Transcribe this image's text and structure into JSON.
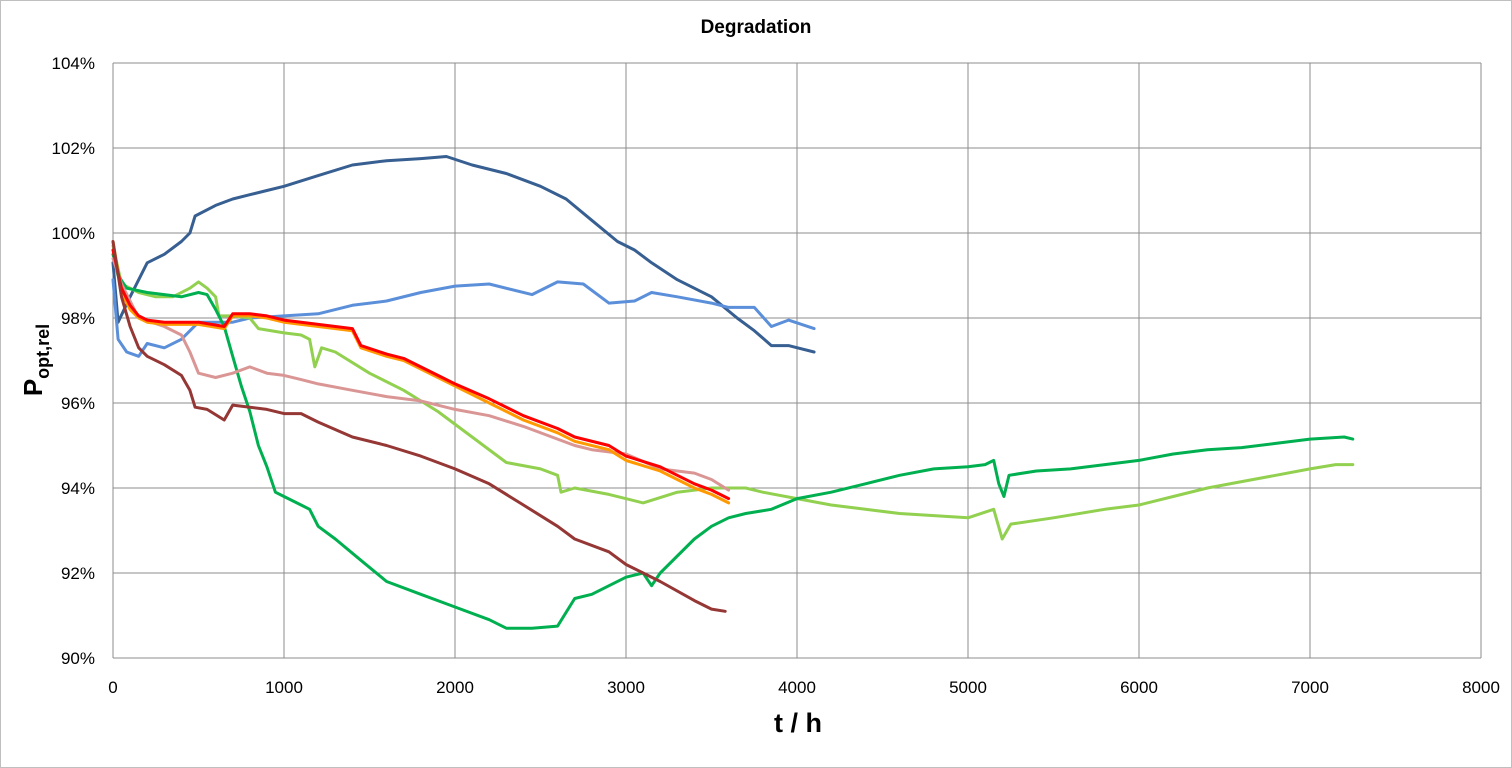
{
  "chart_data": {
    "type": "line",
    "title": "Degradation",
    "xlabel": "t / h",
    "ylabel_main": "P",
    "ylabel_sub": "opt,rel",
    "xlim": [
      0,
      8000
    ],
    "ylim": [
      90,
      104
    ],
    "x_ticks": [
      0,
      1000,
      2000,
      3000,
      4000,
      5000,
      6000,
      7000,
      8000
    ],
    "x_tick_labels": [
      "0",
      "1000",
      "2000",
      "3000",
      "4000",
      "5000",
      "6000",
      "7000",
      "8000"
    ],
    "y_ticks": [
      90,
      92,
      94,
      96,
      98,
      100,
      102,
      104
    ],
    "y_tick_labels": [
      "90%",
      "92%",
      "94%",
      "96%",
      "98%",
      "100%",
      "102%",
      "104%"
    ],
    "grid": true,
    "legend": "none",
    "series": [
      {
        "color": "#375f91",
        "points": [
          [
            0,
            99.3
          ],
          [
            30,
            97.9
          ],
          [
            100,
            98.5
          ],
          [
            200,
            99.3
          ],
          [
            300,
            99.5
          ],
          [
            400,
            99.8
          ],
          [
            450,
            100.0
          ],
          [
            480,
            100.4
          ],
          [
            600,
            100.65
          ],
          [
            700,
            100.8
          ],
          [
            800,
            100.9
          ],
          [
            900,
            101.0
          ],
          [
            1000,
            101.1
          ],
          [
            1200,
            101.35
          ],
          [
            1400,
            101.6
          ],
          [
            1600,
            101.7
          ],
          [
            1800,
            101.75
          ],
          [
            1950,
            101.8
          ],
          [
            2100,
            101.6
          ],
          [
            2300,
            101.4
          ],
          [
            2500,
            101.1
          ],
          [
            2650,
            100.8
          ],
          [
            2800,
            100.3
          ],
          [
            2950,
            99.8
          ],
          [
            3050,
            99.6
          ],
          [
            3150,
            99.3
          ],
          [
            3300,
            98.9
          ],
          [
            3500,
            98.5
          ],
          [
            3650,
            98.0
          ],
          [
            3750,
            97.7
          ],
          [
            3850,
            97.35
          ],
          [
            3950,
            97.35
          ],
          [
            4100,
            97.2
          ]
        ]
      },
      {
        "color": "#5b8fd9",
        "points": [
          [
            0,
            98.9
          ],
          [
            30,
            97.5
          ],
          [
            80,
            97.2
          ],
          [
            150,
            97.1
          ],
          [
            200,
            97.4
          ],
          [
            300,
            97.3
          ],
          [
            400,
            97.5
          ],
          [
            500,
            97.9
          ],
          [
            700,
            97.9
          ],
          [
            800,
            98.0
          ],
          [
            1000,
            98.05
          ],
          [
            1200,
            98.1
          ],
          [
            1400,
            98.3
          ],
          [
            1600,
            98.4
          ],
          [
            1800,
            98.6
          ],
          [
            2000,
            98.75
          ],
          [
            2200,
            98.8
          ],
          [
            2450,
            98.55
          ],
          [
            2600,
            98.85
          ],
          [
            2750,
            98.8
          ],
          [
            2900,
            98.35
          ],
          [
            3050,
            98.4
          ],
          [
            3150,
            98.6
          ],
          [
            3300,
            98.5
          ],
          [
            3500,
            98.35
          ],
          [
            3600,
            98.25
          ],
          [
            3750,
            98.25
          ],
          [
            3850,
            97.8
          ],
          [
            3950,
            97.95
          ],
          [
            4100,
            97.75
          ]
        ]
      },
      {
        "color": "#92d050",
        "points": [
          [
            0,
            99.7
          ],
          [
            50,
            98.8
          ],
          [
            150,
            98.6
          ],
          [
            250,
            98.5
          ],
          [
            350,
            98.5
          ],
          [
            450,
            98.7
          ],
          [
            500,
            98.85
          ],
          [
            550,
            98.7
          ],
          [
            600,
            98.5
          ],
          [
            620,
            98.05
          ],
          [
            700,
            98.05
          ],
          [
            800,
            98.0
          ],
          [
            850,
            97.75
          ],
          [
            1000,
            97.65
          ],
          [
            1100,
            97.6
          ],
          [
            1150,
            97.5
          ],
          [
            1180,
            96.85
          ],
          [
            1220,
            97.3
          ],
          [
            1300,
            97.2
          ],
          [
            1500,
            96.7
          ],
          [
            1700,
            96.3
          ],
          [
            1900,
            95.8
          ],
          [
            2100,
            95.2
          ],
          [
            2300,
            94.6
          ],
          [
            2500,
            94.45
          ],
          [
            2600,
            94.3
          ],
          [
            2620,
            93.9
          ],
          [
            2700,
            94.0
          ],
          [
            2900,
            93.85
          ],
          [
            3100,
            93.65
          ],
          [
            3300,
            93.9
          ],
          [
            3500,
            94.0
          ],
          [
            3700,
            94.0
          ],
          [
            3800,
            93.9
          ],
          [
            4000,
            93.75
          ],
          [
            4200,
            93.6
          ],
          [
            4400,
            93.5
          ],
          [
            4600,
            93.4
          ],
          [
            4800,
            93.35
          ],
          [
            5000,
            93.3
          ],
          [
            5150,
            93.5
          ],
          [
            5200,
            92.8
          ],
          [
            5250,
            93.15
          ],
          [
            5500,
            93.3
          ],
          [
            5800,
            93.5
          ],
          [
            6000,
            93.6
          ],
          [
            6200,
            93.8
          ],
          [
            6400,
            94.0
          ],
          [
            6600,
            94.15
          ],
          [
            6800,
            94.3
          ],
          [
            7000,
            94.45
          ],
          [
            7150,
            94.55
          ],
          [
            7250,
            94.55
          ]
        ]
      },
      {
        "color": "#00b050",
        "points": [
          [
            0,
            99.5
          ],
          [
            30,
            99.0
          ],
          [
            80,
            98.7
          ],
          [
            200,
            98.6
          ],
          [
            300,
            98.55
          ],
          [
            400,
            98.5
          ],
          [
            500,
            98.6
          ],
          [
            550,
            98.55
          ],
          [
            600,
            98.2
          ],
          [
            650,
            97.8
          ],
          [
            700,
            97.1
          ],
          [
            750,
            96.4
          ],
          [
            800,
            95.8
          ],
          [
            850,
            95.0
          ],
          [
            900,
            94.5
          ],
          [
            950,
            93.9
          ],
          [
            1000,
            93.8
          ],
          [
            1100,
            93.6
          ],
          [
            1150,
            93.5
          ],
          [
            1200,
            93.1
          ],
          [
            1300,
            92.8
          ],
          [
            1450,
            92.3
          ],
          [
            1600,
            91.8
          ],
          [
            1800,
            91.5
          ],
          [
            2000,
            91.2
          ],
          [
            2200,
            90.9
          ],
          [
            2300,
            90.7
          ],
          [
            2450,
            90.7
          ],
          [
            2600,
            90.75
          ],
          [
            2700,
            91.4
          ],
          [
            2800,
            91.5
          ],
          [
            3000,
            91.9
          ],
          [
            3100,
            92.0
          ],
          [
            3150,
            91.7
          ],
          [
            3200,
            92.0
          ],
          [
            3300,
            92.4
          ],
          [
            3400,
            92.8
          ],
          [
            3500,
            93.1
          ],
          [
            3600,
            93.3
          ],
          [
            3700,
            93.4
          ],
          [
            3850,
            93.5
          ],
          [
            4000,
            93.75
          ],
          [
            4200,
            93.9
          ],
          [
            4400,
            94.1
          ],
          [
            4600,
            94.3
          ],
          [
            4800,
            94.45
          ],
          [
            5000,
            94.5
          ],
          [
            5100,
            94.55
          ],
          [
            5150,
            94.65
          ],
          [
            5180,
            94.1
          ],
          [
            5210,
            93.8
          ],
          [
            5240,
            94.3
          ],
          [
            5400,
            94.4
          ],
          [
            5600,
            94.45
          ],
          [
            5800,
            94.55
          ],
          [
            6000,
            94.65
          ],
          [
            6200,
            94.8
          ],
          [
            6400,
            94.9
          ],
          [
            6600,
            94.95
          ],
          [
            6800,
            95.05
          ],
          [
            7000,
            95.15
          ],
          [
            7200,
            95.2
          ],
          [
            7250,
            95.15
          ]
        ]
      },
      {
        "color": "#da9694",
        "points": [
          [
            0,
            99.4
          ],
          [
            50,
            98.8
          ],
          [
            150,
            98.0
          ],
          [
            300,
            97.8
          ],
          [
            400,
            97.6
          ],
          [
            450,
            97.2
          ],
          [
            500,
            96.7
          ],
          [
            600,
            96.6
          ],
          [
            700,
            96.7
          ],
          [
            800,
            96.85
          ],
          [
            900,
            96.7
          ],
          [
            1000,
            96.65
          ],
          [
            1100,
            96.55
          ],
          [
            1200,
            96.45
          ],
          [
            1400,
            96.3
          ],
          [
            1600,
            96.15
          ],
          [
            1800,
            96.05
          ],
          [
            2000,
            95.85
          ],
          [
            2200,
            95.7
          ],
          [
            2400,
            95.45
          ],
          [
            2600,
            95.15
          ],
          [
            2700,
            95.0
          ],
          [
            2800,
            94.9
          ],
          [
            3000,
            94.8
          ],
          [
            3200,
            94.45
          ],
          [
            3400,
            94.35
          ],
          [
            3500,
            94.2
          ],
          [
            3600,
            93.95
          ]
        ]
      },
      {
        "color": "#ff9900",
        "points": [
          [
            0,
            99.8
          ],
          [
            50,
            98.6
          ],
          [
            100,
            98.2
          ],
          [
            150,
            98.0
          ],
          [
            200,
            97.9
          ],
          [
            300,
            97.85
          ],
          [
            500,
            97.85
          ],
          [
            650,
            97.75
          ],
          [
            700,
            98.05
          ],
          [
            800,
            98.05
          ],
          [
            900,
            98.0
          ],
          [
            1000,
            97.9
          ],
          [
            1200,
            97.8
          ],
          [
            1400,
            97.7
          ],
          [
            1450,
            97.3
          ],
          [
            1600,
            97.1
          ],
          [
            1700,
            97.0
          ],
          [
            1800,
            96.8
          ],
          [
            1900,
            96.6
          ],
          [
            2000,
            96.4
          ],
          [
            2200,
            96.0
          ],
          [
            2400,
            95.6
          ],
          [
            2600,
            95.3
          ],
          [
            2700,
            95.1
          ],
          [
            2900,
            94.9
          ],
          [
            3000,
            94.65
          ],
          [
            3200,
            94.4
          ],
          [
            3400,
            94.0
          ],
          [
            3500,
            93.85
          ],
          [
            3600,
            93.65
          ]
        ]
      },
      {
        "color": "#ff0000",
        "points": [
          [
            0,
            99.6
          ],
          [
            50,
            98.7
          ],
          [
            100,
            98.3
          ],
          [
            150,
            98.05
          ],
          [
            200,
            97.95
          ],
          [
            300,
            97.9
          ],
          [
            500,
            97.9
          ],
          [
            650,
            97.8
          ],
          [
            700,
            98.1
          ],
          [
            800,
            98.1
          ],
          [
            900,
            98.05
          ],
          [
            1000,
            97.95
          ],
          [
            1200,
            97.85
          ],
          [
            1400,
            97.75
          ],
          [
            1450,
            97.35
          ],
          [
            1600,
            97.15
          ],
          [
            1700,
            97.05
          ],
          [
            1800,
            96.85
          ],
          [
            1900,
            96.65
          ],
          [
            2000,
            96.45
          ],
          [
            2200,
            96.1
          ],
          [
            2400,
            95.7
          ],
          [
            2600,
            95.4
          ],
          [
            2700,
            95.2
          ],
          [
            2900,
            95.0
          ],
          [
            3000,
            94.75
          ],
          [
            3200,
            94.5
          ],
          [
            3400,
            94.1
          ],
          [
            3500,
            93.95
          ],
          [
            3600,
            93.75
          ]
        ]
      },
      {
        "color": "#953735",
        "points": [
          [
            0,
            99.8
          ],
          [
            50,
            98.5
          ],
          [
            100,
            97.8
          ],
          [
            150,
            97.3
          ],
          [
            200,
            97.1
          ],
          [
            300,
            96.9
          ],
          [
            400,
            96.65
          ],
          [
            450,
            96.3
          ],
          [
            480,
            95.9
          ],
          [
            550,
            95.85
          ],
          [
            650,
            95.6
          ],
          [
            700,
            95.95
          ],
          [
            900,
            95.85
          ],
          [
            1000,
            95.75
          ],
          [
            1100,
            95.75
          ],
          [
            1200,
            95.55
          ],
          [
            1400,
            95.2
          ],
          [
            1600,
            95.0
          ],
          [
            1800,
            94.75
          ],
          [
            2000,
            94.45
          ],
          [
            2200,
            94.1
          ],
          [
            2400,
            93.6
          ],
          [
            2600,
            93.1
          ],
          [
            2700,
            92.8
          ],
          [
            2900,
            92.5
          ],
          [
            3000,
            92.2
          ],
          [
            3200,
            91.8
          ],
          [
            3400,
            91.35
          ],
          [
            3500,
            91.15
          ],
          [
            3580,
            91.1
          ]
        ]
      }
    ]
  }
}
